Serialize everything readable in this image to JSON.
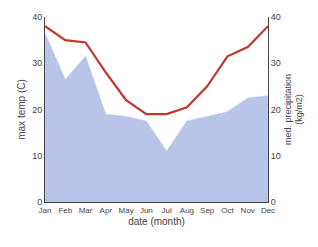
{
  "chart_data": {
    "type": "line",
    "categories": [
      "Jan",
      "Feb",
      "Mar",
      "Apr",
      "May",
      "Jun",
      "Jul",
      "Aug",
      "Sep",
      "Oct",
      "Nov",
      "Dec"
    ],
    "xlabel": "date (month)",
    "ylabel": "max temp (C)",
    "y2label": "med. precipitation\n(kg/m2)",
    "series": [
      {
        "type": "area",
        "color": "#b8c4e8",
        "values": [
          36.5,
          26.5,
          31.5,
          19.0,
          18.5,
          17.5,
          11.0,
          17.5,
          18.5,
          19.5,
          22.5,
          23.0
        ]
      },
      {
        "type": "line",
        "color": "#c0392b",
        "axis": "y2",
        "values": [
          38.0,
          35.0,
          34.5,
          28.0,
          22.0,
          19.0,
          19.0,
          20.5,
          25.0,
          31.5,
          33.5,
          38.0
        ]
      }
    ],
    "ylim": [
      0,
      40
    ],
    "yticks": [
      0,
      10,
      20,
      30,
      40
    ],
    "y2lim": [
      0,
      40
    ],
    "y2ticks": [
      0,
      10,
      20,
      30,
      40
    ],
    "grid": false
  }
}
